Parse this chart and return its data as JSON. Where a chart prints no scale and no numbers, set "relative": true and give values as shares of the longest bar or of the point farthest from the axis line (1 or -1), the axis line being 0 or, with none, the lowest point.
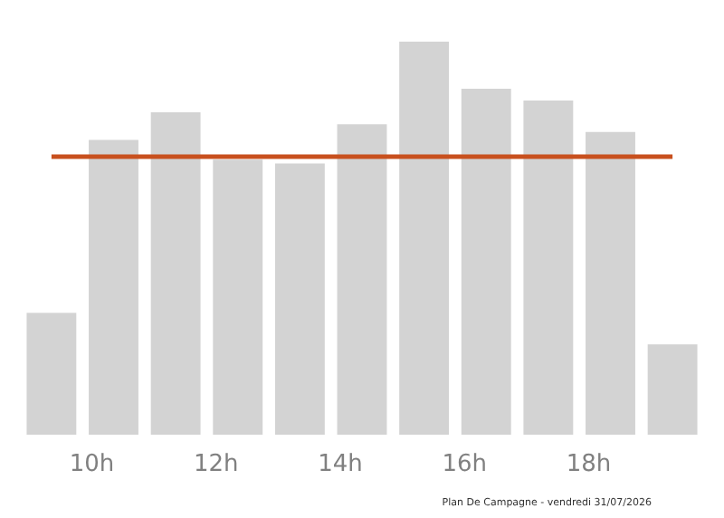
{
  "chart_data": {
    "type": "bar",
    "relative": true,
    "x": [
      9.35,
      10.35,
      11.35,
      12.35,
      13.35,
      14.35,
      15.35,
      16.35,
      17.35,
      18.35,
      19.35
    ],
    "values": [
      0.31,
      0.75,
      0.82,
      0.7,
      0.69,
      0.79,
      1,
      0.88,
      0.85,
      0.77,
      0.23
    ],
    "color": "#d3d3d3",
    "xlim": [
      8.9,
      19.8
    ],
    "xticks": [
      {
        "value": 10,
        "label": "10h"
      },
      {
        "value": 12,
        "label": "12h"
      },
      {
        "value": 14,
        "label": "14h"
      },
      {
        "value": 16,
        "label": "16h"
      },
      {
        "value": 18,
        "label": "18h"
      }
    ],
    "ref_lines": [
      {
        "axis": "y",
        "value": 0.71,
        "label": null,
        "color": "#c8501e"
      }
    ],
    "annotations": [
      "Plan De Campagne - vendredi 31/07/2026"
    ]
  }
}
